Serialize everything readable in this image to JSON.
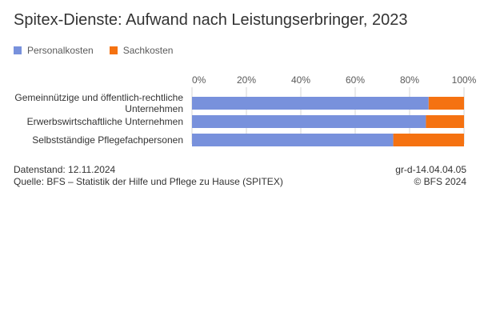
{
  "chart_data": {
    "type": "bar",
    "orientation": "horizontal",
    "stacked": true,
    "title": "Spitex-Dienste: Aufwand nach Leistungserbringer, 2023",
    "categories": [
      [
        "Gemeinnützige und öffentlich-rechtliche",
        "Unternehmen"
      ],
      [
        "Erwerbswirtschaftliche Unternehmen"
      ],
      [
        "Selbstständige Pflegefachpersonen"
      ]
    ],
    "series": [
      {
        "name": "Personalkosten",
        "color": "#7891dc",
        "values": [
          87,
          86,
          74
        ]
      },
      {
        "name": "Sachkosten",
        "color": "#f57211",
        "values": [
          13,
          14,
          26
        ]
      }
    ],
    "xlim": [
      0,
      100
    ],
    "xticks": [
      "0%",
      "20%",
      "40%",
      "60%",
      "80%",
      "100%"
    ],
    "tick_values": [
      0,
      20,
      40,
      60,
      80,
      100
    ],
    "grid": true,
    "legend_position": "top-left"
  },
  "footer": {
    "date": "Datenstand: 12.11.2024",
    "source": "Quelle: BFS – Statistik der Hilfe und Pflege zu Hause (SPITEX)",
    "code": "gr-d-14.04.04.05",
    "copyright": "© BFS 2024"
  }
}
